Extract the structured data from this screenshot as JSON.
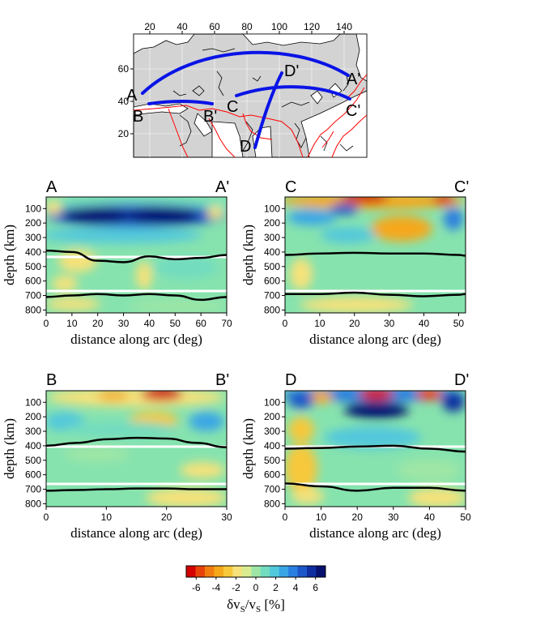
{
  "map": {
    "lon_ticks": [
      "20",
      "40",
      "60",
      "80",
      "100",
      "120",
      "140"
    ],
    "lat_ticks": [
      "60",
      "40",
      "20"
    ],
    "profiles": [
      {
        "start": "A",
        "end": "A'"
      },
      {
        "start": "B",
        "end": "B'"
      },
      {
        "start": "C",
        "end": "C'"
      },
      {
        "start": "D",
        "end": "D'"
      }
    ],
    "colors": {
      "land": "#d3d3d3",
      "coast": "#000000",
      "plate_boundary": "#ff0000",
      "profile": "#0a14e6"
    }
  },
  "panels": [
    {
      "id": "A",
      "left_label": "A",
      "right_label": "A'",
      "xmax": 70,
      "xticks": [
        "0",
        "10",
        "20",
        "30",
        "40",
        "50",
        "60",
        "70"
      ]
    },
    {
      "id": "C",
      "left_label": "C",
      "right_label": "C'",
      "xmax": 52,
      "xticks": [
        "0",
        "10",
        "20",
        "30",
        "40",
        "50"
      ]
    },
    {
      "id": "B",
      "left_label": "B",
      "right_label": "B'",
      "xmax": 30,
      "xticks": [
        "0",
        "10",
        "20",
        "30"
      ]
    },
    {
      "id": "D",
      "left_label": "D",
      "right_label": "D'",
      "xmax": 50,
      "xticks": [
        "0",
        "10",
        "20",
        "30",
        "40",
        "50"
      ]
    }
  ],
  "axes": {
    "xlabel": "distance along arc (deg)",
    "ylabel": "depth (km)",
    "yticks": [
      "100",
      "200",
      "300",
      "400",
      "500",
      "600",
      "700",
      "800"
    ]
  },
  "colorbar": {
    "ticks": [
      "-6",
      "-4",
      "-2",
      "0",
      "2",
      "4",
      "6"
    ],
    "label_parts": [
      "δv",
      "S",
      "/v",
      "S",
      " [%]"
    ],
    "colors": [
      "#d40000",
      "#e8420a",
      "#f07d10",
      "#f5a81a",
      "#f7c83a",
      "#f6e27a",
      "#d8ec8f",
      "#9ee6a6",
      "#72dcc0",
      "#52c8dc",
      "#3aa6e6",
      "#2a7fe0",
      "#1c56c8",
      "#0e2ea0",
      "#06106e"
    ]
  },
  "chart_data": [
    {
      "type": "heatmap",
      "title": "A – A'",
      "xlabel": "distance along arc (deg)",
      "ylabel": "depth (km)",
      "xlim": [
        0,
        70
      ],
      "ylim": [
        800,
        0
      ],
      "color_range": [
        -6,
        6
      ],
      "discontinuities": [
        {
          "x": [
            0,
            10,
            20,
            30,
            40,
            50,
            60,
            70
          ],
          "depth": [
            390,
            400,
            460,
            470,
            430,
            450,
            440,
            420
          ]
        },
        {
          "x": [
            0,
            10,
            20,
            30,
            40,
            50,
            60,
            70
          ],
          "depth": [
            710,
            700,
            690,
            700,
            690,
            700,
            730,
            710
          ]
        }
      ],
      "white_lines_depth": [
        410,
        660
      ]
    },
    {
      "type": "heatmap",
      "title": "C – C'",
      "xlabel": "distance along arc (deg)",
      "ylabel": "depth (km)",
      "xlim": [
        0,
        52
      ],
      "ylim": [
        800,
        0
      ],
      "color_range": [
        -6,
        6
      ],
      "discontinuities": [
        {
          "x": [
            0,
            10,
            20,
            30,
            40,
            50,
            52
          ],
          "depth": [
            420,
            410,
            405,
            410,
            410,
            420,
            425
          ]
        },
        {
          "x": [
            0,
            10,
            20,
            30,
            40,
            50,
            52
          ],
          "depth": [
            690,
            690,
            680,
            695,
            705,
            695,
            690
          ]
        }
      ],
      "white_lines_depth": [
        410,
        660
      ]
    },
    {
      "type": "heatmap",
      "title": "B – B'",
      "xlabel": "distance along arc (deg)",
      "ylabel": "depth (km)",
      "xlim": [
        0,
        30
      ],
      "ylim": [
        800,
        0
      ],
      "color_range": [
        -6,
        6
      ],
      "discontinuities": [
        {
          "x": [
            0,
            5,
            10,
            15,
            20,
            25,
            30
          ],
          "depth": [
            400,
            380,
            355,
            345,
            350,
            380,
            410
          ]
        },
        {
          "x": [
            0,
            5,
            10,
            15,
            20,
            25,
            30
          ],
          "depth": [
            710,
            705,
            700,
            695,
            695,
            700,
            700
          ]
        }
      ],
      "white_lines_depth": [
        410,
        660
      ]
    },
    {
      "type": "heatmap",
      "title": "D – D'",
      "xlabel": "distance along arc (deg)",
      "ylabel": "depth (km)",
      "xlim": [
        0,
        50
      ],
      "ylim": [
        800,
        0
      ],
      "color_range": [
        -6,
        6
      ],
      "discontinuities": [
        {
          "x": [
            0,
            10,
            20,
            30,
            40,
            50
          ],
          "depth": [
            420,
            415,
            405,
            400,
            420,
            440
          ]
        },
        {
          "x": [
            0,
            10,
            20,
            30,
            40,
            50
          ],
          "depth": [
            660,
            680,
            710,
            690,
            690,
            710
          ]
        }
      ],
      "white_lines_depth": [
        410,
        660
      ]
    }
  ]
}
